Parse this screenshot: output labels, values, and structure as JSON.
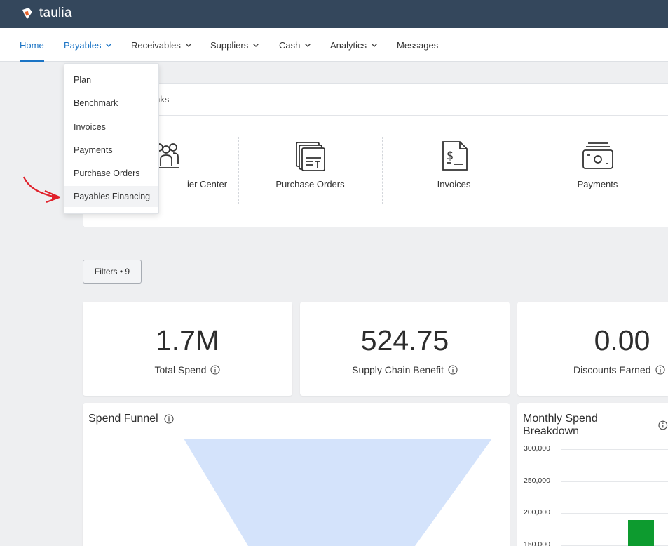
{
  "brand": {
    "name": "taulia",
    "accent": "#1b74c5",
    "logo_color": "#e8622a"
  },
  "nav": {
    "home": "Home",
    "payables": "Payables",
    "receivables": "Receivables",
    "suppliers": "Suppliers",
    "cash": "Cash",
    "analytics": "Analytics",
    "messages": "Messages"
  },
  "payables_menu": {
    "items": [
      "Plan",
      "Benchmark",
      "Invoices",
      "Payments",
      "Purchase Orders",
      "Payables Financing"
    ],
    "highlighted": "Payables Financing"
  },
  "quick_links": {
    "title_partial": "nks",
    "items": [
      {
        "label_partial": "ier Center",
        "icon": "supplier-center-icon"
      },
      {
        "label": "Purchase Orders",
        "icon": "purchase-orders-icon"
      },
      {
        "label": "Invoices",
        "icon": "invoice-icon"
      },
      {
        "label": "Payments",
        "icon": "payments-icon"
      }
    ]
  },
  "filters": {
    "label": "Filters • 9"
  },
  "kpis": [
    {
      "value": "1.7M",
      "label": "Total Spend"
    },
    {
      "value": "524.75",
      "label": "Supply Chain Benefit"
    },
    {
      "value": "0.00",
      "label": "Discounts Earned"
    }
  ],
  "spend_funnel": {
    "title": "Spend Funnel",
    "color": "#d4e3fb"
  },
  "chart_data": {
    "type": "bar",
    "title": "Monthly Spend Breakdown",
    "y_ticks": [
      "300,000",
      "250,000",
      "200,000",
      "150,000"
    ],
    "visible_bar": {
      "value": 190000,
      "color": "#0d9b2f"
    },
    "ylim": [
      150000,
      300000
    ]
  }
}
